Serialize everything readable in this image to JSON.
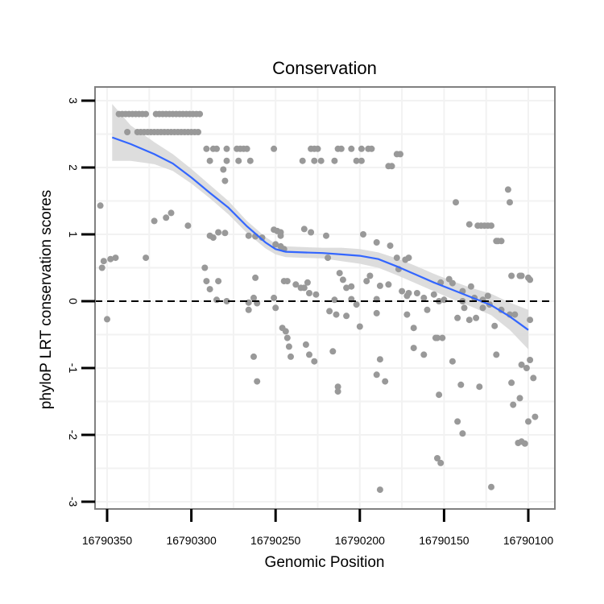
{
  "chart_data": {
    "type": "scatter",
    "title": "Conservation",
    "xlabel": "Genomic Position",
    "ylabel": "phyloP LRT conservation scores",
    "x_reversed": true,
    "xlim": [
      16790355,
      16790097
    ],
    "ylim": [
      -3.05,
      3.2
    ],
    "x_ticks": [
      16790350,
      16790300,
      16790250,
      16790200,
      16790150,
      16790100
    ],
    "x_tick_labels": [
      "16790350",
      "16790300",
      "16790250",
      "16790200",
      "16790150",
      "16790100"
    ],
    "y_ticks": [
      -3,
      -2,
      -1,
      0,
      1,
      2,
      3
    ],
    "y_tick_labels": [
      "-3",
      "-2",
      "-1",
      "0",
      "1",
      "2",
      "3"
    ],
    "reference_line": {
      "y": 0,
      "style": "dashed"
    },
    "grid": true,
    "colors": {
      "points": "#999999",
      "smooth": "#3366ff",
      "ribbon": "#d9d9d9",
      "panel_border": "#808080",
      "grid": "#f2f2f2"
    },
    "points": [
      [
        16790343,
        2.8
      ],
      [
        16790341,
        2.8
      ],
      [
        16790339,
        2.8
      ],
      [
        16790337,
        2.8
      ],
      [
        16790335,
        2.8
      ],
      [
        16790333,
        2.8
      ],
      [
        16790331,
        2.8
      ],
      [
        16790329,
        2.8
      ],
      [
        16790327,
        2.8
      ],
      [
        16790321,
        2.8
      ],
      [
        16790319,
        2.8
      ],
      [
        16790317,
        2.8
      ],
      [
        16790315,
        2.8
      ],
      [
        16790313,
        2.8
      ],
      [
        16790311,
        2.8
      ],
      [
        16790309,
        2.8
      ],
      [
        16790307,
        2.8
      ],
      [
        16790305,
        2.8
      ],
      [
        16790303,
        2.8
      ],
      [
        16790301,
        2.8
      ],
      [
        16790299,
        2.8
      ],
      [
        16790297,
        2.8
      ],
      [
        16790295,
        2.8
      ],
      [
        16790338,
        2.53
      ],
      [
        16790332,
        2.53
      ],
      [
        16790330,
        2.53
      ],
      [
        16790328,
        2.53
      ],
      [
        16790326,
        2.53
      ],
      [
        16790324,
        2.53
      ],
      [
        16790322,
        2.53
      ],
      [
        16790320,
        2.53
      ],
      [
        16790318,
        2.53
      ],
      [
        16790316,
        2.53
      ],
      [
        16790314,
        2.53
      ],
      [
        16790312,
        2.53
      ],
      [
        16790310,
        2.53
      ],
      [
        16790308,
        2.53
      ],
      [
        16790306,
        2.53
      ],
      [
        16790304,
        2.53
      ],
      [
        16790302,
        2.53
      ],
      [
        16790300,
        2.53
      ],
      [
        16790298,
        2.53
      ],
      [
        16790296,
        2.53
      ],
      [
        16790291,
        2.28
      ],
      [
        16790287,
        2.28
      ],
      [
        16790285,
        2.28
      ],
      [
        16790279,
        2.28
      ],
      [
        16790273,
        2.28
      ],
      [
        16790271,
        2.28
      ],
      [
        16790269,
        2.28
      ],
      [
        16790267,
        2.28
      ],
      [
        16790251,
        2.28
      ],
      [
        16790229,
        2.28
      ],
      [
        16790227,
        2.28
      ],
      [
        16790225,
        2.28
      ],
      [
        16790213,
        2.28
      ],
      [
        16790211,
        2.28
      ],
      [
        16790205,
        2.28
      ],
      [
        16790199,
        2.28
      ],
      [
        16790195,
        2.28
      ],
      [
        16790193,
        2.28
      ],
      [
        16790289,
        2.1
      ],
      [
        16790279,
        2.1
      ],
      [
        16790272,
        2.1
      ],
      [
        16790265,
        2.1
      ],
      [
        16790234,
        2.1
      ],
      [
        16790227,
        2.1
      ],
      [
        16790223,
        2.1
      ],
      [
        16790215,
        2.1
      ],
      [
        16790202,
        2.1
      ],
      [
        16790199,
        2.1
      ],
      [
        16790183,
        2.02
      ],
      [
        16790181,
        2.02
      ],
      [
        16790178,
        2.2
      ],
      [
        16790176,
        2.2
      ],
      [
        16790281,
        1.97
      ],
      [
        16790280,
        1.8
      ],
      [
        16790354,
        1.43
      ],
      [
        16790322,
        1.2
      ],
      [
        16790315,
        1.25
      ],
      [
        16790312,
        1.32
      ],
      [
        16790302,
        1.13
      ],
      [
        16790284,
        1.03
      ],
      [
        16790280,
        1.02
      ],
      [
        16790266,
        0.98
      ],
      [
        16790262,
        0.97
      ],
      [
        16790258,
        0.95
      ],
      [
        16790251,
        1.07
      ],
      [
        16790249,
        1.05
      ],
      [
        16790247,
        1.03
      ],
      [
        16790247,
        0.98
      ],
      [
        16790233,
        1.08
      ],
      [
        16790229,
        1.03
      ],
      [
        16790220,
        0.98
      ],
      [
        16790198,
        1.0
      ],
      [
        16790190,
        0.88
      ],
      [
        16790182,
        0.83
      ],
      [
        16790178,
        0.65
      ],
      [
        16790173,
        0.62
      ],
      [
        16790171,
        0.65
      ],
      [
        16790143,
        1.48
      ],
      [
        16790135,
        1.15
      ],
      [
        16790130,
        1.13
      ],
      [
        16790128,
        1.13
      ],
      [
        16790126,
        1.13
      ],
      [
        16790124,
        1.13
      ],
      [
        16790122,
        1.13
      ],
      [
        16790119,
        0.9
      ],
      [
        16790118,
        0.9
      ],
      [
        16790116,
        0.9
      ],
      [
        16790112,
        1.67
      ],
      [
        16790111,
        1.48
      ],
      [
        16790110,
        0.38
      ],
      [
        16790105,
        0.38
      ],
      [
        16790104,
        0.38
      ],
      [
        16790100,
        0.35
      ],
      [
        16790099,
        0.32
      ],
      [
        16790353,
        0.5
      ],
      [
        16790352,
        0.6
      ],
      [
        16790348,
        0.63
      ],
      [
        16790345,
        0.65
      ],
      [
        16790327,
        0.65
      ],
      [
        16790289,
        0.98
      ],
      [
        16790287,
        0.95
      ],
      [
        16790292,
        0.5
      ],
      [
        16790291,
        0.3
      ],
      [
        16790284,
        0.3
      ],
      [
        16790289,
        0.18
      ],
      [
        16790262,
        0.35
      ],
      [
        16790250,
        0.85
      ],
      [
        16790247,
        0.82
      ],
      [
        16790245,
        0.78
      ],
      [
        16790245,
        0.3
      ],
      [
        16790243,
        0.3
      ],
      [
        16790238,
        0.25
      ],
      [
        16790235,
        0.2
      ],
      [
        16790233,
        0.2
      ],
      [
        16790231,
        0.28
      ],
      [
        16790230,
        0.12
      ],
      [
        16790219,
        0.65
      ],
      [
        16790212,
        0.42
      ],
      [
        16790210,
        0.32
      ],
      [
        16790208,
        0.2
      ],
      [
        16790205,
        0.22
      ],
      [
        16790196,
        0.3
      ],
      [
        16790194,
        0.38
      ],
      [
        16790188,
        0.23
      ],
      [
        16790183,
        0.25
      ],
      [
        16790177,
        0.48
      ],
      [
        16790175,
        0.15
      ],
      [
        16790172,
        0.08
      ],
      [
        16790166,
        0.12
      ],
      [
        16790162,
        0.05
      ],
      [
        16790156,
        0.1
      ],
      [
        16790152,
        0.28
      ],
      [
        16790147,
        0.33
      ],
      [
        16790145,
        0.27
      ],
      [
        16790139,
        0.15
      ],
      [
        16790134,
        0.22
      ],
      [
        16790132,
        0.05
      ],
      [
        16790127,
        0.02
      ],
      [
        16790124,
        0.08
      ],
      [
        16790285,
        0.02
      ],
      [
        16790279,
        0.0
      ],
      [
        16790266,
        -0.02
      ],
      [
        16790263,
        0.05
      ],
      [
        16790251,
        0.05
      ],
      [
        16790226,
        0.1
      ],
      [
        16790215,
        0.02
      ],
      [
        16790205,
        0.03
      ],
      [
        16790190,
        0.03
      ],
      [
        16790171,
        0.12
      ],
      [
        16790153,
        0.0
      ],
      [
        16790150,
        0.02
      ],
      [
        16790139,
        0.0
      ],
      [
        16790350,
        -0.27
      ],
      [
        16790266,
        -0.13
      ],
      [
        16790261,
        -0.03
      ],
      [
        16790250,
        -0.1
      ],
      [
        16790218,
        -0.15
      ],
      [
        16790214,
        -0.2
      ],
      [
        16790208,
        -0.22
      ],
      [
        16790202,
        -0.05
      ],
      [
        16790200,
        -0.38
      ],
      [
        16790190,
        -0.18
      ],
      [
        16790172,
        -0.2
      ],
      [
        16790168,
        -0.4
      ],
      [
        16790160,
        -0.13
      ],
      [
        16790155,
        -0.55
      ],
      [
        16790151,
        -0.55
      ],
      [
        16790142,
        -0.25
      ],
      [
        16790138,
        -0.1
      ],
      [
        16790135,
        -0.28
      ],
      [
        16790131,
        -0.25
      ],
      [
        16790127,
        -0.1
      ],
      [
        16790123,
        -0.05
      ],
      [
        16790120,
        -0.37
      ],
      [
        16790116,
        -0.13
      ],
      [
        16790111,
        -0.2
      ],
      [
        16790108,
        -0.2
      ],
      [
        16790099,
        -0.28
      ],
      [
        16790263,
        -0.83
      ],
      [
        16790261,
        -1.2
      ],
      [
        16790246,
        -0.4
      ],
      [
        16790244,
        -0.45
      ],
      [
        16790243,
        -0.55
      ],
      [
        16790242,
        -0.68
      ],
      [
        16790241,
        -0.83
      ],
      [
        16790232,
        -0.65
      ],
      [
        16790230,
        -0.8
      ],
      [
        16790227,
        -0.9
      ],
      [
        16790216,
        -0.75
      ],
      [
        16790188,
        -0.87
      ],
      [
        16790185,
        -1.2
      ],
      [
        16790168,
        -0.7
      ],
      [
        16790162,
        -0.8
      ],
      [
        16790154,
        -0.55
      ],
      [
        16790145,
        -0.9
      ],
      [
        16790140,
        -1.25
      ],
      [
        16790119,
        -0.8
      ],
      [
        16790105,
        -1.45
      ],
      [
        16790104,
        -0.95
      ],
      [
        16790101,
        -1.0
      ],
      [
        16790099,
        -0.88
      ],
      [
        16790097,
        -1.15
      ],
      [
        16790213,
        -1.28
      ],
      [
        16790213,
        -1.35
      ],
      [
        16790190,
        -1.1
      ],
      [
        16790153,
        -1.4
      ],
      [
        16790142,
        -1.8
      ],
      [
        16790139,
        -1.98
      ],
      [
        16790129,
        -1.28
      ],
      [
        16790110,
        -1.22
      ],
      [
        16790109,
        -1.55
      ],
      [
        16790106,
        -2.12
      ],
      [
        16790104,
        -2.1
      ],
      [
        16790102,
        -2.13
      ],
      [
        16790100,
        -1.8
      ],
      [
        16790096,
        -1.73
      ],
      [
        16790154,
        -2.35
      ],
      [
        16790152,
        -2.42
      ],
      [
        16790188,
        -2.82
      ],
      [
        16790122,
        -2.78
      ]
    ],
    "smooth": {
      "x": [
        16790347,
        16790336,
        16790322,
        16790311,
        16790300,
        16790289,
        16790278,
        16790267,
        16790256,
        16790250,
        16790244,
        16790234,
        16790222,
        16790211,
        16790200,
        16790189,
        16790178,
        16790167,
        16790156,
        16790145,
        16790134,
        16790122,
        16790111,
        16790100
      ],
      "y": [
        2.45,
        2.35,
        2.2,
        2.06,
        1.85,
        1.62,
        1.4,
        1.12,
        0.88,
        0.78,
        0.74,
        0.73,
        0.72,
        0.7,
        0.68,
        0.63,
        0.52,
        0.4,
        0.28,
        0.17,
        0.06,
        -0.06,
        -0.23,
        -0.43
      ],
      "lower": [
        2.1,
        2.1,
        2.05,
        1.95,
        1.76,
        1.54,
        1.3,
        1.02,
        0.79,
        0.7,
        0.66,
        0.65,
        0.64,
        0.6,
        0.56,
        0.5,
        0.39,
        0.27,
        0.15,
        0.03,
        -0.08,
        -0.21,
        -0.43,
        -0.72
      ],
      "upper": [
        2.95,
        2.63,
        2.38,
        2.2,
        1.98,
        1.74,
        1.5,
        1.2,
        0.96,
        0.86,
        0.82,
        0.81,
        0.8,
        0.8,
        0.78,
        0.73,
        0.64,
        0.53,
        0.41,
        0.3,
        0.2,
        0.11,
        -0.02,
        -0.13
      ]
    }
  }
}
